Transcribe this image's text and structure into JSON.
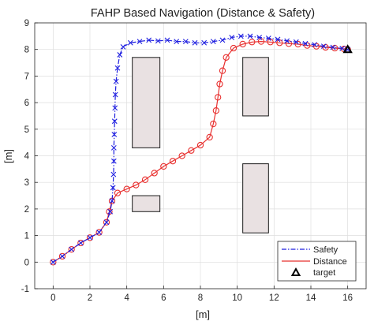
{
  "chart_data": {
    "type": "line",
    "title": "FAHP Based Navigation (Distance & Safety)",
    "xlabel": "[m]",
    "ylabel": "[m]",
    "xlim": [
      -1,
      17
    ],
    "ylim": [
      -1,
      9
    ],
    "xticks": [
      "0",
      "2",
      "4",
      "6",
      "8",
      "10",
      "12",
      "14",
      "16"
    ],
    "yticks": [
      "-1",
      "0",
      "1",
      "2",
      "3",
      "4",
      "5",
      "6",
      "7",
      "8",
      "9"
    ],
    "xtick_values": [
      0,
      2,
      4,
      6,
      8,
      10,
      12,
      14,
      16
    ],
    "ytick_values": [
      -1,
      0,
      1,
      2,
      3,
      4,
      5,
      6,
      7,
      8,
      9
    ],
    "grid": true,
    "legend_position": "bottom-right",
    "obstacles": [
      {
        "x": [
          4.3,
          5.8
        ],
        "y": [
          4.3,
          7.7
        ]
      },
      {
        "x": [
          4.3,
          5.8
        ],
        "y": [
          1.9,
          2.5
        ]
      },
      {
        "x": [
          10.3,
          11.7
        ],
        "y": [
          5.5,
          7.7
        ]
      },
      {
        "x": [
          10.3,
          11.7
        ],
        "y": [
          1.1,
          3.7
        ]
      }
    ],
    "obstacle_fill": "#e9e1e2",
    "series": [
      {
        "name": "Safety",
        "color": "#1f1fe0",
        "line_style": "dash-dot",
        "marker": "x",
        "points": [
          [
            0,
            0
          ],
          [
            0.5,
            0.22
          ],
          [
            1.0,
            0.48
          ],
          [
            1.5,
            0.72
          ],
          [
            2.0,
            0.92
          ],
          [
            2.5,
            1.12
          ],
          [
            2.9,
            1.5
          ],
          [
            3.1,
            1.9
          ],
          [
            3.2,
            2.3
          ],
          [
            3.25,
            2.8
          ],
          [
            3.28,
            3.3
          ],
          [
            3.3,
            3.8
          ],
          [
            3.3,
            4.3
          ],
          [
            3.32,
            4.8
          ],
          [
            3.34,
            5.3
          ],
          [
            3.36,
            5.8
          ],
          [
            3.38,
            6.3
          ],
          [
            3.42,
            6.8
          ],
          [
            3.5,
            7.3
          ],
          [
            3.62,
            7.8
          ],
          [
            3.8,
            8.1
          ],
          [
            4.2,
            8.25
          ],
          [
            4.7,
            8.3
          ],
          [
            5.2,
            8.35
          ],
          [
            5.7,
            8.32
          ],
          [
            6.2,
            8.35
          ],
          [
            6.7,
            8.3
          ],
          [
            7.2,
            8.3
          ],
          [
            7.7,
            8.25
          ],
          [
            8.2,
            8.25
          ],
          [
            8.7,
            8.3
          ],
          [
            9.2,
            8.35
          ],
          [
            9.7,
            8.45
          ],
          [
            10.2,
            8.5
          ],
          [
            10.7,
            8.5
          ],
          [
            11.2,
            8.45
          ],
          [
            11.7,
            8.42
          ],
          [
            12.2,
            8.38
          ],
          [
            12.7,
            8.32
          ],
          [
            13.2,
            8.28
          ],
          [
            13.7,
            8.22
          ],
          [
            14.2,
            8.18
          ],
          [
            14.7,
            8.12
          ],
          [
            15.2,
            8.08
          ],
          [
            15.7,
            8.04
          ],
          [
            16.0,
            8.0
          ]
        ]
      },
      {
        "name": "Distance",
        "color": "#e8302f",
        "line_style": "solid",
        "marker": "o",
        "points": [
          [
            0,
            0
          ],
          [
            0.5,
            0.22
          ],
          [
            1.0,
            0.48
          ],
          [
            1.5,
            0.72
          ],
          [
            2.0,
            0.92
          ],
          [
            2.5,
            1.12
          ],
          [
            2.9,
            1.5
          ],
          [
            3.05,
            1.9
          ],
          [
            3.2,
            2.3
          ],
          [
            3.5,
            2.6
          ],
          [
            4.0,
            2.75
          ],
          [
            4.5,
            2.9
          ],
          [
            5.0,
            3.1
          ],
          [
            5.5,
            3.35
          ],
          [
            6.0,
            3.6
          ],
          [
            6.5,
            3.8
          ],
          [
            7.0,
            4.0
          ],
          [
            7.5,
            4.2
          ],
          [
            8.0,
            4.4
          ],
          [
            8.5,
            4.7
          ],
          [
            8.7,
            5.2
          ],
          [
            8.85,
            5.7
          ],
          [
            8.95,
            6.2
          ],
          [
            9.05,
            6.7
          ],
          [
            9.2,
            7.2
          ],
          [
            9.4,
            7.7
          ],
          [
            9.8,
            8.05
          ],
          [
            10.3,
            8.2
          ],
          [
            10.8,
            8.28
          ],
          [
            11.3,
            8.3
          ],
          [
            11.8,
            8.28
          ],
          [
            12.3,
            8.25
          ],
          [
            12.8,
            8.22
          ],
          [
            13.3,
            8.2
          ],
          [
            13.8,
            8.15
          ],
          [
            14.3,
            8.12
          ],
          [
            14.8,
            8.08
          ],
          [
            15.3,
            8.05
          ],
          [
            15.8,
            8.02
          ],
          [
            16.0,
            8.0
          ]
        ]
      }
    ],
    "target": {
      "name": "target",
      "point": [
        16,
        8
      ],
      "marker": "triangle"
    }
  }
}
